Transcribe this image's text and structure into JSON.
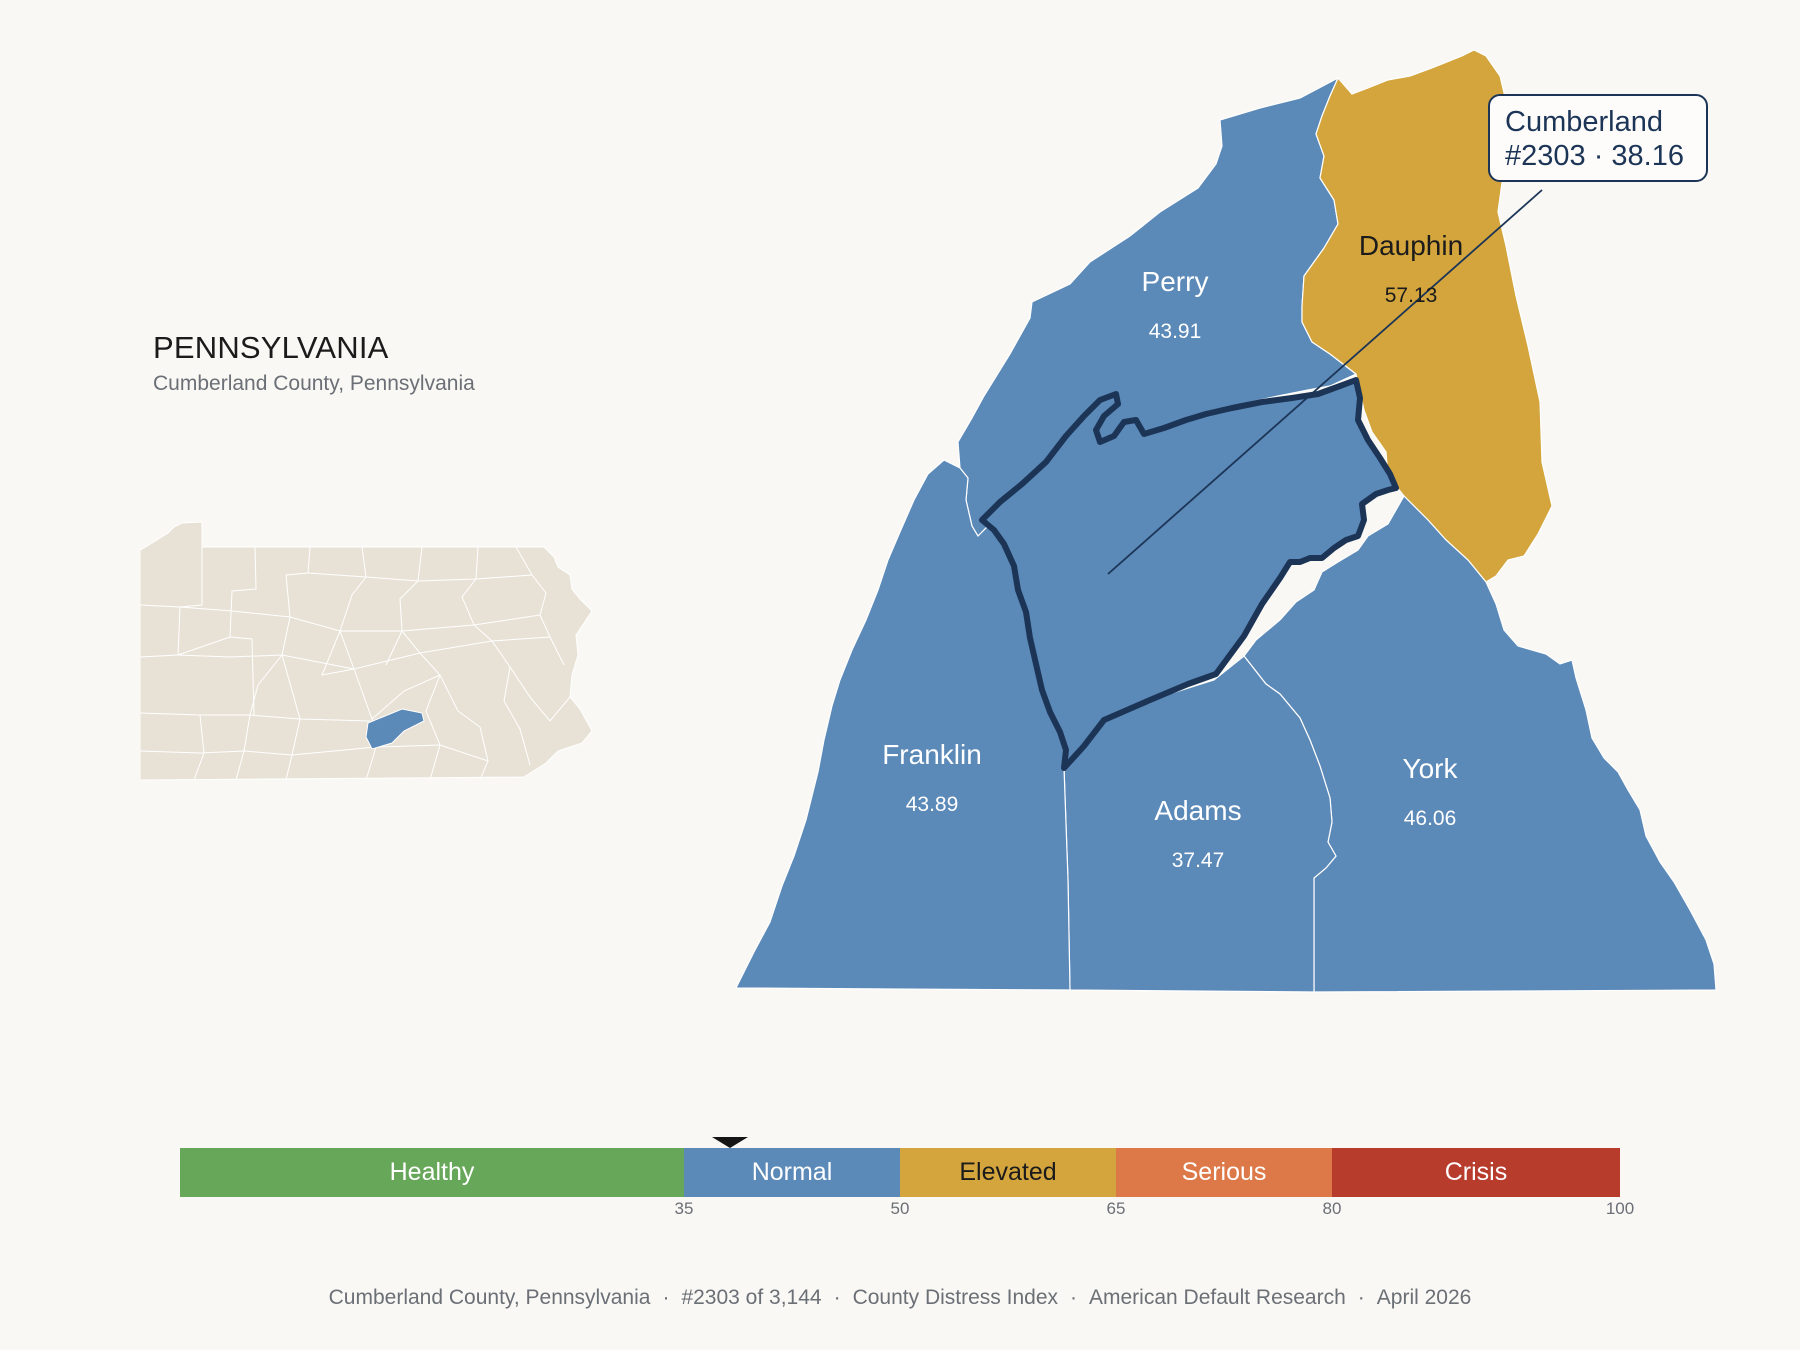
{
  "header": {
    "state_title": "PENNSYLVANIA",
    "subtitle": "Cumberland County, Pennsylvania"
  },
  "map": {
    "focus_county": "Cumberland",
    "callout": {
      "line1": "Cumberland",
      "line2": "#2303 · 38.16"
    },
    "neighbors": [
      {
        "name": "Perry",
        "value": "43.91",
        "category": "Normal"
      },
      {
        "name": "Dauphin",
        "value": "57.13",
        "category": "Elevated"
      },
      {
        "name": "Franklin",
        "value": "43.89",
        "category": "Normal"
      },
      {
        "name": "Adams",
        "value": "37.47",
        "category": "Normal"
      },
      {
        "name": "York",
        "value": "46.06",
        "category": "Normal"
      }
    ],
    "colors": {
      "normal": "#5b89b8",
      "elevated": "#d3a53c",
      "focus_outline": "#1c3557",
      "locator_fill": "#e8e2d6"
    }
  },
  "scale": {
    "current_value": 38.16,
    "min": 0,
    "max": 100,
    "segments": [
      {
        "label": "Healthy",
        "from": 0,
        "to": 35,
        "color": "#67a75a",
        "text_color": "#ffffff"
      },
      {
        "label": "Normal",
        "from": 35,
        "to": 50,
        "color": "#5b89b8",
        "text_color": "#ffffff"
      },
      {
        "label": "Elevated",
        "from": 50,
        "to": 65,
        "color": "#d3a53c",
        "text_color": "#1b1b1b"
      },
      {
        "label": "Serious",
        "from": 65,
        "to": 80,
        "color": "#dd7949",
        "text_color": "#ffffff"
      },
      {
        "label": "Crisis",
        "from": 80,
        "to": 100,
        "color": "#b83c2c",
        "text_color": "#ffffff"
      }
    ],
    "ticks": [
      "35",
      "50",
      "65",
      "80",
      "100"
    ]
  },
  "footer": {
    "county": "Cumberland County, Pennsylvania",
    "rank": "#2303 of 3,144",
    "index_name": "County Distress Index",
    "source": "American Default Research",
    "date": "April 2026"
  }
}
